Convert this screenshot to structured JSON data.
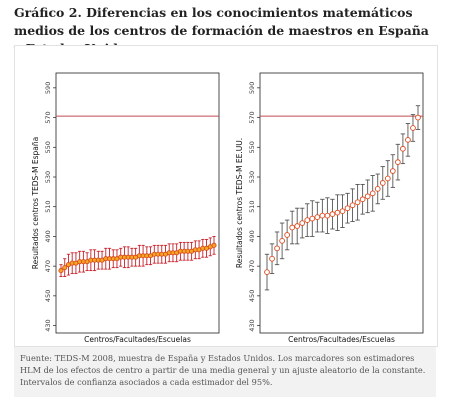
{
  "header": {
    "title": "Gráfico 2. Diferencias en los conocimientos matemáticos medios de los centros de formación de maestros en España y Estados Unidos"
  },
  "caption": {
    "text": "Fuente: TEDS-M 2008, muestra de España y Estados Unidos. Los marcadores son estimadores HLM de los efectos de centro a partir de una media general y un ajuste aleatorio de la constante. Intervalos de confianza asociados a cada estimador del 95%."
  },
  "colors": {
    "reference_line": "#c24a55",
    "spain_marker_fill": "#f5a623",
    "spain_marker_stroke": "#d94a1e",
    "spain_error": "#c8202a",
    "us_marker_fill": "#ffffff",
    "us_marker_stroke": "#d94a1e",
    "us_error": "#555555"
  },
  "chart_data": [
    {
      "type": "scatter",
      "panel": "left",
      "ylabel": "Resultados centros TEDS-M España",
      "xlabel": "Centros/Facultades/Escuelas",
      "ylim": [
        425,
        600
      ],
      "yticks": [
        430,
        450,
        470,
        490,
        510,
        530,
        550,
        570,
        590
      ],
      "reference_line": 571,
      "grid": false,
      "y": [
        467,
        469,
        471,
        472,
        472,
        473,
        473,
        473,
        474,
        474,
        474,
        474,
        475,
        475,
        475,
        475,
        476,
        476,
        476,
        476,
        476,
        477,
        477,
        477,
        477,
        478,
        478,
        478,
        478,
        479,
        479,
        479,
        480,
        480,
        480,
        480,
        481,
        481,
        482,
        482,
        483,
        484
      ],
      "ci_halfwidth": [
        4,
        6,
        7,
        7,
        7,
        7,
        7,
        6,
        7,
        7,
        6,
        6,
        7,
        7,
        6,
        6,
        6,
        7,
        7,
        6,
        6,
        7,
        7,
        6,
        6,
        6,
        6,
        6,
        6,
        6,
        6,
        6,
        6,
        6,
        6,
        6,
        6,
        6,
        6,
        6,
        6,
        6
      ]
    },
    {
      "type": "scatter",
      "panel": "right",
      "ylabel": "Resultados centros TEDS-M EE.UU.",
      "xlabel": "Centros/Facultades/Escuelas",
      "ylim": [
        425,
        600
      ],
      "yticks": [
        430,
        450,
        470,
        490,
        510,
        530,
        550,
        570,
        590
      ],
      "reference_line": 571,
      "grid": false,
      "y": [
        466,
        475,
        482,
        487,
        491,
        496,
        497,
        499,
        501,
        502,
        503,
        504,
        504,
        505,
        506,
        507,
        509,
        511,
        513,
        515,
        517,
        519,
        522,
        526,
        529,
        534,
        540,
        549,
        555,
        563,
        570
      ],
      "ci_halfwidth": [
        12,
        10,
        11,
        12,
        10,
        11,
        12,
        10,
        11,
        12,
        10,
        11,
        12,
        10,
        12,
        11,
        10,
        11,
        12,
        10,
        11,
        12,
        10,
        11,
        12,
        11,
        12,
        10,
        11,
        9,
        8
      ]
    }
  ]
}
